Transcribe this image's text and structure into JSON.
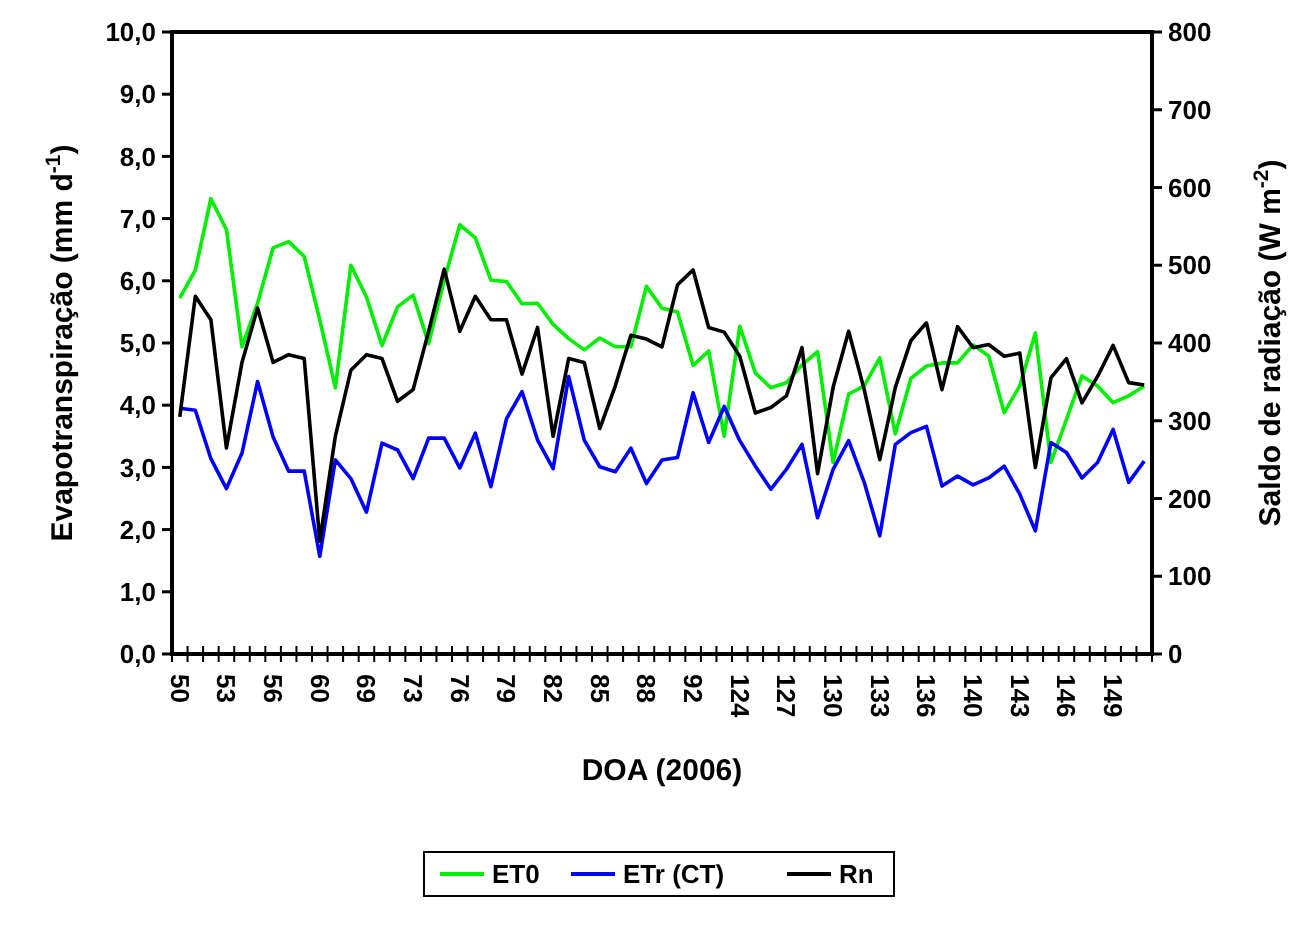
{
  "chart_data": {
    "type": "line",
    "xlabel": "DOA (2006)",
    "ylabel": "Evapotranspiração (mm d$^{-1}$)",
    "y2label": "Saldo de radiação (W m$^{-2}$)",
    "categories": [
      "50",
      null,
      null,
      "53",
      null,
      null,
      "56",
      null,
      null,
      "60",
      null,
      null,
      "69",
      null,
      null,
      "73",
      null,
      null,
      "76",
      null,
      null,
      "79",
      null,
      null,
      "82",
      null,
      null,
      "85",
      null,
      null,
      "88",
      null,
      null,
      "92",
      null,
      null,
      "124",
      null,
      null,
      "127",
      null,
      null,
      "130",
      null,
      null,
      "133",
      null,
      null,
      "136",
      null,
      null,
      "140",
      null,
      null,
      "143",
      null,
      null,
      "146",
      null,
      null,
      "149",
      null,
      null
    ],
    "series": [
      {
        "name": "ET0",
        "color": "#00ee00",
        "values": [
          5.72,
          6.17,
          7.32,
          6.82,
          4.94,
          5.64,
          6.53,
          6.63,
          6.39,
          5.37,
          4.28,
          6.25,
          5.74,
          4.96,
          5.58,
          5.77,
          4.99,
          6.01,
          6.9,
          6.69,
          6.01,
          5.99,
          5.63,
          5.64,
          5.3,
          5.07,
          4.89,
          5.08,
          4.94,
          4.94,
          5.91,
          5.56,
          5.5,
          4.64,
          4.87,
          3.5,
          5.27,
          4.52,
          4.28,
          4.36,
          4.65,
          4.86,
          3.08,
          4.18,
          4.31,
          4.76,
          3.54,
          4.43,
          4.63,
          4.68,
          4.68,
          4.97,
          4.79,
          3.88,
          4.31,
          5.16,
          3.08,
          3.77,
          4.47,
          4.31,
          4.04,
          4.15,
          4.31
        ]
      },
      {
        "name": "ETr (CT)",
        "color": "#0000ff",
        "values": [
          3.95,
          3.92,
          3.14,
          2.66,
          3.23,
          4.38,
          3.49,
          2.94,
          2.94,
          1.57,
          3.12,
          2.82,
          2.28,
          3.39,
          3.28,
          2.82,
          3.47,
          3.47,
          2.99,
          3.55,
          2.69,
          3.78,
          4.22,
          3.44,
          2.98,
          4.46,
          3.44,
          3.01,
          2.93,
          3.31,
          2.74,
          3.12,
          3.16,
          4.2,
          3.4,
          3.98,
          3.43,
          3.02,
          2.65,
          2.97,
          3.37,
          2.19,
          2.97,
          3.43,
          2.76,
          1.9,
          3.37,
          3.56,
          3.66,
          2.7,
          2.86,
          2.72,
          2.83,
          3.02,
          2.57,
          1.98,
          3.4,
          3.24,
          2.83,
          3.08,
          3.61,
          2.76,
          3.1
        ]
      },
      {
        "name": "Rn",
        "color": "#000000",
        "axis": "y2",
        "values": [
          305,
          460,
          430,
          265,
          375,
          445,
          375,
          385,
          380,
          145,
          280,
          365,
          385,
          380,
          325,
          340,
          415,
          495,
          415,
          460,
          430,
          430,
          360,
          420,
          280,
          380,
          375,
          290,
          345,
          410,
          405,
          395,
          475,
          494,
          420,
          414,
          383,
          310,
          317,
          332,
          394,
          232,
          343,
          415,
          340,
          250,
          343,
          403,
          426,
          340,
          421,
          394,
          398,
          383,
          387,
          240,
          355,
          380,
          323,
          357,
          397,
          349,
          346
        ]
      }
    ],
    "ylim": [
      0,
      10
    ],
    "yticks": [
      {
        "value": 0,
        "label": "0,0"
      },
      {
        "value": 1,
        "label": "1,0"
      },
      {
        "value": 2,
        "label": "2,0"
      },
      {
        "value": 3,
        "label": "3,0"
      },
      {
        "value": 4,
        "label": "4,0"
      },
      {
        "value": 5,
        "label": "5,0"
      },
      {
        "value": 6,
        "label": "6,0"
      },
      {
        "value": 7,
        "label": "7,0"
      },
      {
        "value": 8,
        "label": "8,0"
      },
      {
        "value": 9,
        "label": "9,0"
      },
      {
        "value": 10,
        "label": "10,0"
      }
    ],
    "y2lim": [
      0,
      800
    ],
    "y2ticks": [
      0,
      100,
      200,
      300,
      400,
      500,
      600,
      700,
      800
    ],
    "legend": "bottom",
    "grid": false,
    "marker": "none",
    "line_style": "solid"
  }
}
